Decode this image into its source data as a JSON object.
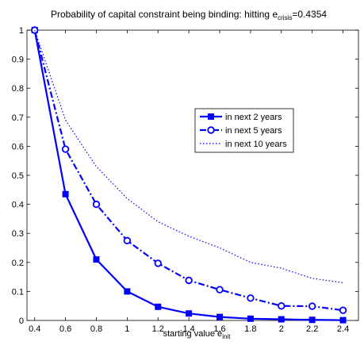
{
  "chart_data": {
    "type": "line",
    "title": {
      "main": "Probability of capital constraint being binding: hitting e",
      "sub": "crisis",
      "tail": "=0.4354"
    },
    "xlabel": {
      "main": "starting value e",
      "sub": "init"
    },
    "ylabel": "",
    "xlim": [
      0.35,
      2.5
    ],
    "ylim": [
      0,
      1
    ],
    "xticks": [
      0.4,
      0.6,
      0.8,
      1,
      1.2,
      1.4,
      1.6,
      1.8,
      2,
      2.2,
      2.4
    ],
    "xtick_labels": [
      "0.4",
      "0.6",
      "0.8",
      "1",
      "1.2",
      "1.4",
      "1.6",
      "1.8",
      "2",
      "2.2",
      "2.4"
    ],
    "yticks": [
      0,
      0.1,
      0.2,
      0.3,
      0.4,
      0.5,
      0.6,
      0.7,
      0.8,
      0.9,
      1
    ],
    "ytick_labels": [
      "0",
      "0.1",
      "0.2",
      "0.3",
      "0.4",
      "0.5",
      "0.6",
      "0.7",
      "0.8",
      "0.9",
      "1"
    ],
    "grid": false,
    "legend_position": "center-right",
    "x": [
      0.4,
      0.6,
      0.8,
      1,
      1.2,
      1.4,
      1.6,
      1.8,
      2,
      2.2,
      2.4
    ],
    "series": [
      {
        "name": "in next 2 years",
        "color": "#0000ff",
        "line_style": "solid",
        "marker": "square",
        "values": [
          1.0,
          0.435,
          0.21,
          0.1,
          0.047,
          0.024,
          0.012,
          0.006,
          0.004,
          0.002,
          0.001
        ]
      },
      {
        "name": "in next 5 years",
        "color": "#0000ff",
        "line_style": "dashdot",
        "marker": "circle",
        "values": [
          1.0,
          0.59,
          0.4,
          0.275,
          0.197,
          0.138,
          0.106,
          0.077,
          0.05,
          0.049,
          0.035
        ]
      },
      {
        "name": "in next 10 years",
        "color": "#0000ff",
        "line_style": "dotted",
        "marker": "none",
        "values": [
          1.0,
          0.69,
          0.53,
          0.42,
          0.34,
          0.29,
          0.25,
          0.2,
          0.18,
          0.145,
          0.13
        ]
      }
    ]
  }
}
